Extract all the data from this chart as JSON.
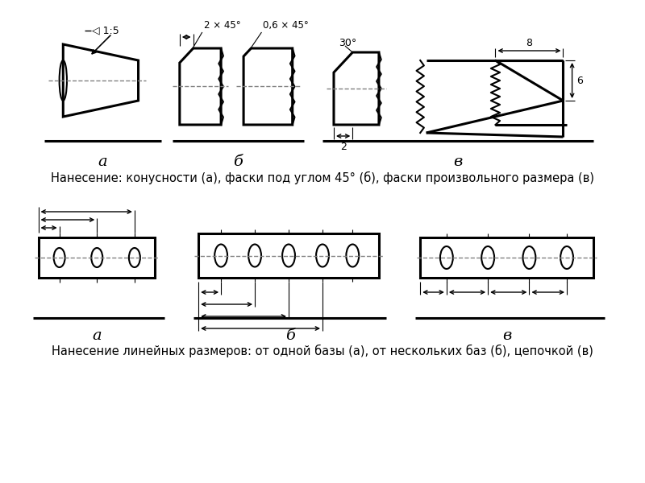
{
  "title1": "Нанесение: конусности (а), фаски под углом 45° (б), фаски произвольного размера (в)",
  "title2": "Нанесение линейных размеров: от одной базы (а), от нескольких баз (б), цепочкой (в)",
  "label_a": "а",
  "label_b": "б",
  "label_v": "в",
  "bg_color": "#ffffff",
  "line_color": "#000000",
  "lw_thin": 0.8,
  "lw_main": 1.5,
  "lw_thick": 2.2,
  "font_caption": 10.5,
  "font_label": 14
}
